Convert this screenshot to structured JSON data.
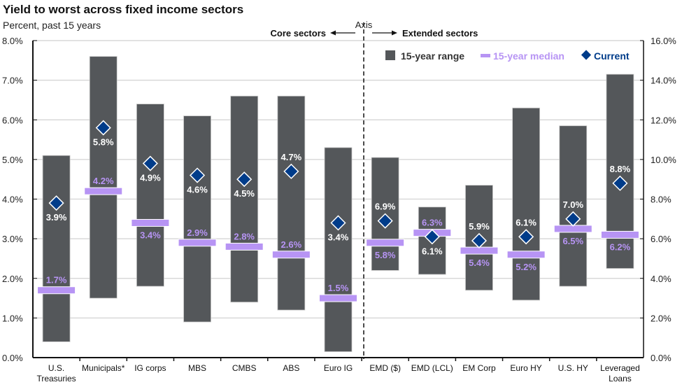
{
  "chart_data": {
    "type": "range-bar",
    "title": "Yield to worst across fixed income sectors",
    "subtitle": "Percent, past 15 years",
    "left_axis": {
      "min": 0,
      "max": 8,
      "step": 1,
      "ticks": [
        "0.0%",
        "1.0%",
        "2.0%",
        "3.0%",
        "4.0%",
        "5.0%",
        "6.0%",
        "7.0%",
        "8.0%"
      ]
    },
    "right_axis": {
      "min": 0,
      "max": 16,
      "step": 2,
      "ticks": [
        "0.0%",
        "2.0%",
        "4.0%",
        "6.0%",
        "8.0%",
        "10.0%",
        "12.0%",
        "14.0%",
        "16.0%"
      ]
    },
    "grid": true,
    "divider": {
      "label": "Axis",
      "left_label": "Core sectors",
      "right_label": "Extended sectors"
    },
    "legend": {
      "placement": "top-right",
      "items": [
        {
          "name": "15-year range",
          "color": "#54575A"
        },
        {
          "name": "15-year median",
          "color": "#B794F4"
        },
        {
          "name": "Current",
          "color": "#003C8A"
        }
      ]
    },
    "categories": [
      "U.S. Treasuries",
      "Municipals*",
      "IG corps",
      "MBS",
      "CMBS",
      "ABS",
      "Euro IG",
      "EMD ($)",
      "EMD (LCL)",
      "EM Corp",
      "Euro HY",
      "U.S. HY",
      "Leveraged Loans"
    ],
    "category_lines": [
      [
        "U.S.",
        "Treasuries"
      ],
      [
        "Municipals*"
      ],
      [
        "IG corps"
      ],
      [
        "MBS"
      ],
      [
        "CMBS"
      ],
      [
        "ABS"
      ],
      [
        "Euro IG"
      ],
      [
        "EMD ($)"
      ],
      [
        "EMD (LCL)"
      ],
      [
        "EM Corp"
      ],
      [
        "Euro HY"
      ],
      [
        "U.S. HY"
      ],
      [
        "Leveraged",
        "Loans"
      ]
    ],
    "axis_side": [
      "left",
      "left",
      "left",
      "left",
      "left",
      "left",
      "left",
      "right",
      "right",
      "right",
      "right",
      "right",
      "right"
    ],
    "series": [
      {
        "name": "15-year range low",
        "values": [
          0.4,
          1.5,
          1.8,
          0.9,
          1.4,
          1.2,
          0.15,
          4.4,
          4.2,
          3.4,
          2.9,
          3.6,
          4.5
        ]
      },
      {
        "name": "15-year range high",
        "values": [
          5.1,
          7.6,
          6.4,
          6.1,
          6.6,
          6.6,
          5.3,
          10.1,
          7.6,
          8.7,
          12.6,
          11.7,
          14.3
        ]
      },
      {
        "name": "15-year median",
        "values": [
          1.7,
          4.2,
          3.4,
          2.9,
          2.8,
          2.6,
          1.5,
          5.8,
          6.3,
          5.4,
          5.2,
          6.5,
          6.2
        ]
      },
      {
        "name": "Current",
        "values": [
          3.9,
          5.8,
          4.9,
          4.6,
          4.5,
          4.7,
          3.4,
          6.9,
          6.1,
          5.9,
          6.1,
          7.0,
          8.8
        ]
      }
    ],
    "median_labels": [
      "1.7%",
      "4.2%",
      "3.4%",
      "2.9%",
      "2.8%",
      "2.6%",
      "1.5%",
      "5.8%",
      "6.3%",
      "5.4%",
      "5.2%",
      "6.5%",
      "6.2%"
    ],
    "current_labels": [
      "3.9%",
      "5.8%",
      "4.9%",
      "4.6%",
      "4.5%",
      "4.7%",
      "3.4%",
      "6.9%",
      "6.1%",
      "5.9%",
      "6.1%",
      "7.0%",
      "8.8%"
    ],
    "median_label_pos": [
      "above",
      "above",
      "below",
      "above",
      "above",
      "above",
      "above",
      "below",
      "above",
      "below",
      "below",
      "below",
      "below"
    ],
    "current_label_pos": [
      "below",
      "below",
      "below",
      "below",
      "below",
      "above",
      "below",
      "above",
      "below",
      "above",
      "above",
      "above",
      "above"
    ]
  }
}
